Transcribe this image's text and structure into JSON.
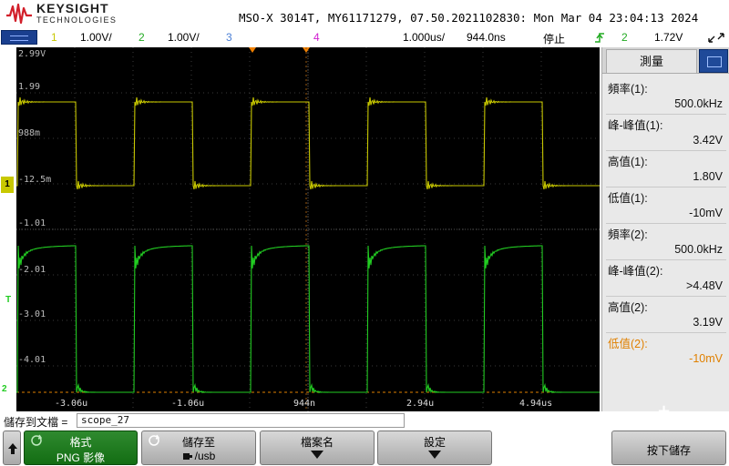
{
  "header": {
    "brand": "KEYSIGHT",
    "brand_sub": "TECHNOLOGIES",
    "model_line": "MSO-X 3014T, MY61171279, 07.50.2021102830: Mon Mar 04 23:04:13 2024"
  },
  "channels": {
    "ch1_num": "1",
    "ch1_scale": "1.00V/",
    "ch2_num": "2",
    "ch2_scale": "1.00V/",
    "ch3_num": "3",
    "ch4_num": "4",
    "timebase": "1.000us/",
    "delay": "944.0ns",
    "run_state": "停止",
    "trigger_source": "2",
    "trigger_level": "1.72V",
    "colors": {
      "ch1": "#c8c800",
      "ch2": "#22cc22",
      "ch3": "#4a7fd6",
      "ch4": "#d020d0"
    }
  },
  "screen": {
    "y_labels": [
      "2.99V",
      "1.99",
      "988m",
      "-12.5m",
      "-1.01",
      "-2.01",
      "-3.01",
      "-4.01"
    ],
    "x_labels": [
      "-3.06u",
      "-1.06u",
      "944n",
      "2.94u",
      "4.94us"
    ],
    "ch1_marker": "1",
    "ch2_marker": "2",
    "trigger_marker": "T"
  },
  "measurements": {
    "tab_label": "測量",
    "items": [
      {
        "name": "頻率(1):",
        "value": "500.0kHz",
        "color": "#000000"
      },
      {
        "name": "峰-峰值(1):",
        "value": "3.42V",
        "color": "#000000"
      },
      {
        "name": "高值(1):",
        "value": "1.80V",
        "color": "#000000"
      },
      {
        "name": "低值(1):",
        "value": "-10mV",
        "color": "#000000"
      },
      {
        "name": "頻率(2):",
        "value": "500.0kHz",
        "color": "#000000"
      },
      {
        "name": "峰-峰值(2):",
        "value": ">4.48V",
        "color": "#000000"
      },
      {
        "name": "高值(2):",
        "value": "3.19V",
        "color": "#000000"
      },
      {
        "name": "低值(2):",
        "value": "-10mV",
        "color": "#e08000"
      }
    ],
    "add_symbol": "+"
  },
  "save": {
    "label": "儲存到文檔 =",
    "filename": "scope_27"
  },
  "softkeys": {
    "format_title": "格式",
    "format_value": "PNG 影像",
    "saveto_title": "儲存至",
    "saveto_value": "/usb",
    "filename_title": "檔案名",
    "settings_title": "設定",
    "press_to_save": "按下儲存"
  }
}
